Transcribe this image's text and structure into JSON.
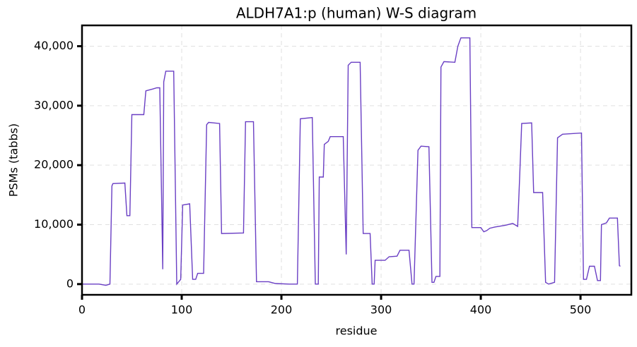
{
  "chart_data": {
    "type": "line",
    "title": "ALDH7A1:p (human) W-S diagram",
    "x_label": "residue",
    "y_label": "PSMs (tabbs)",
    "color": "#6a3fc4",
    "grid": true,
    "xlim": [
      0,
      551
    ],
    "ylim": [
      -1800,
      43500
    ],
    "xticks": [
      0,
      100,
      200,
      300,
      400,
      500
    ],
    "yticks": [
      0,
      {
        "value": 10000,
        "label": "10,000"
      },
      {
        "value": 20000,
        "label": "20,000"
      },
      {
        "value": 30000,
        "label": "30,000"
      },
      {
        "value": 40000,
        "label": "40,000"
      }
    ],
    "x": [
      0,
      17,
      24,
      28,
      30,
      31,
      43,
      45,
      48,
      50,
      62,
      64,
      71,
      75,
      78,
      81,
      82,
      84,
      92,
      95,
      99,
      101,
      108,
      111,
      114,
      116,
      122,
      125,
      127,
      138,
      140,
      162,
      164,
      172,
      175,
      187,
      194,
      208,
      216,
      219,
      231,
      234,
      237,
      238,
      242,
      243,
      247,
      249,
      262,
      265,
      267,
      270,
      279,
      282,
      289,
      291,
      293,
      294,
      304,
      308,
      316,
      319,
      328,
      331,
      333,
      337,
      340,
      348,
      351,
      353,
      355,
      359,
      360,
      363,
      374,
      377,
      380,
      389,
      391,
      400,
      403,
      406,
      409,
      414,
      425,
      432,
      437,
      439,
      441,
      451,
      453,
      462,
      465,
      468,
      474,
      477,
      482,
      501,
      503,
      506,
      509,
      514,
      517,
      520,
      521,
      526,
      529,
      537,
      539,
      540
    ],
    "values": [
      0,
      0,
      -200,
      0,
      16500,
      16900,
      17000,
      11500,
      11500,
      28500,
      28500,
      32500,
      32800,
      33000,
      33000,
      2500,
      34000,
      35800,
      35800,
      0,
      800,
      13300,
      13500,
      800,
      800,
      1800,
      1800,
      26800,
      27200,
      27000,
      8500,
      8600,
      27300,
      27300,
      400,
      400,
      100,
      0,
      0,
      27800,
      28000,
      0,
      0,
      18000,
      18000,
      23500,
      24000,
      24800,
      24800,
      5000,
      36800,
      37300,
      37300,
      8500,
      8500,
      0,
      0,
      4000,
      4000,
      4600,
      4700,
      5700,
      5700,
      0,
      0,
      22500,
      23200,
      23100,
      300,
      300,
      1300,
      1300,
      36500,
      37400,
      37300,
      40000,
      41400,
      41400,
      9500,
      9500,
      8800,
      9000,
      9400,
      9600,
      9900,
      10200,
      9700,
      18200,
      27000,
      27100,
      15400,
      15400,
      300,
      0,
      300,
      24600,
      25200,
      25400,
      800,
      800,
      3000,
      3000,
      600,
      600,
      10000,
      10300,
      11100,
      11100,
      3100,
      3000
    ]
  }
}
